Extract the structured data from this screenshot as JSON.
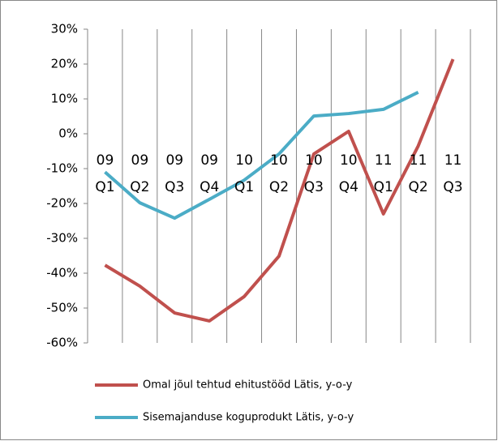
{
  "chart_data": {
    "type": "line",
    "categories": [
      "09 Q1",
      "09 Q2",
      "09 Q3",
      "09 Q4",
      "10 Q1",
      "10 Q2",
      "10 Q3",
      "10 Q4",
      "11 Q1",
      "11 Q2",
      "11 Q3"
    ],
    "series": [
      {
        "name": "Omal jõul tehtud ehitustööd Lätis, y-o-y",
        "color": "#c0504d",
        "values": [
          -37.7,
          -43.7,
          -51.4,
          -53.7,
          -46.7,
          -35.1,
          -5.8,
          0.7,
          -23,
          -3.5,
          21.4
        ]
      },
      {
        "name": "Sisemajanduse koguprodukt Lätis, y-o-y",
        "color": "#4bacc6",
        "values": [
          -11,
          -19.8,
          -24.2,
          -18.8,
          -13.3,
          -5.8,
          5.1,
          5.8,
          7,
          11.9,
          null
        ]
      }
    ],
    "ylim": [
      -60,
      30
    ],
    "yticks": [
      {
        "value": -60,
        "label": "-60%"
      },
      {
        "value": -50,
        "label": "-50%"
      },
      {
        "value": -40,
        "label": "-40%"
      },
      {
        "value": -30,
        "label": "-30%"
      },
      {
        "value": -20,
        "label": "-20%"
      },
      {
        "value": -10,
        "label": "-10%"
      },
      {
        "value": 0,
        "label": "0%"
      },
      {
        "value": 10,
        "label": "10%"
      },
      {
        "value": 20,
        "label": "20%"
      },
      {
        "value": 30,
        "label": "30%"
      }
    ],
    "legend": "bottom"
  }
}
